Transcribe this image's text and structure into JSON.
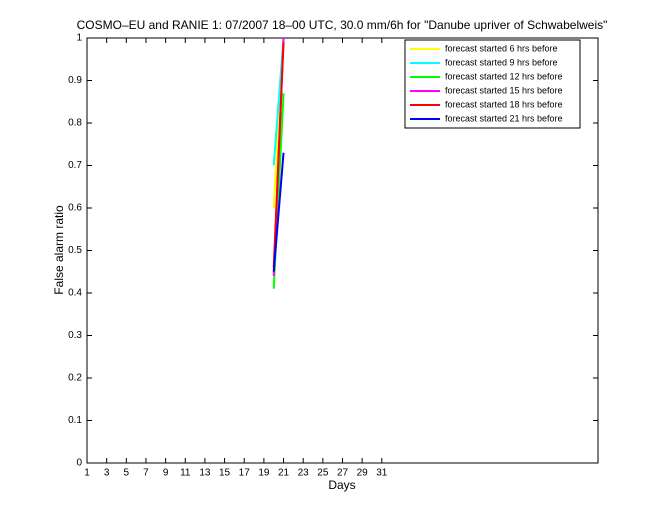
{
  "chart_data": {
    "type": "line",
    "title": "COSMO–EU and RANIE 1: 07/2007 18–00 UTC, 30.0 mm/6h for \"Danube upriver of Schwabelweis\"",
    "xlabel": "Days",
    "ylabel": "False alarm ratio",
    "x": [
      20,
      21
    ],
    "series": [
      {
        "name": "forecast started 6 hrs before",
        "color": "#ffff00",
        "values": [
          0.6,
          1.0
        ]
      },
      {
        "name": "forecast started 9 hrs before",
        "color": "#00ffff",
        "values": [
          0.7,
          1.0
        ]
      },
      {
        "name": "forecast started 12 hrs before",
        "color": "#00ff00",
        "values": [
          0.41,
          0.87
        ]
      },
      {
        "name": "forecast started 15 hrs before",
        "color": "#ff00ff",
        "values": [
          0.44,
          1.0
        ]
      },
      {
        "name": "forecast started 18 hrs before",
        "color": "#ff0000",
        "values": [
          0.46,
          0.99
        ]
      },
      {
        "name": "forecast started 21 hrs before",
        "color": "#0000ff",
        "values": [
          0.45,
          0.73
        ]
      }
    ],
    "xlim": [
      1,
      53
    ],
    "xticks": [
      1,
      3,
      5,
      7,
      9,
      11,
      13,
      15,
      17,
      19,
      21,
      23,
      25,
      27,
      29,
      31
    ],
    "ylim": [
      0,
      1
    ],
    "yticks": [
      0,
      0.1,
      0.2,
      0.3,
      0.4,
      0.5,
      0.6,
      0.7,
      0.8,
      0.9,
      1
    ],
    "legend": "top-right"
  }
}
